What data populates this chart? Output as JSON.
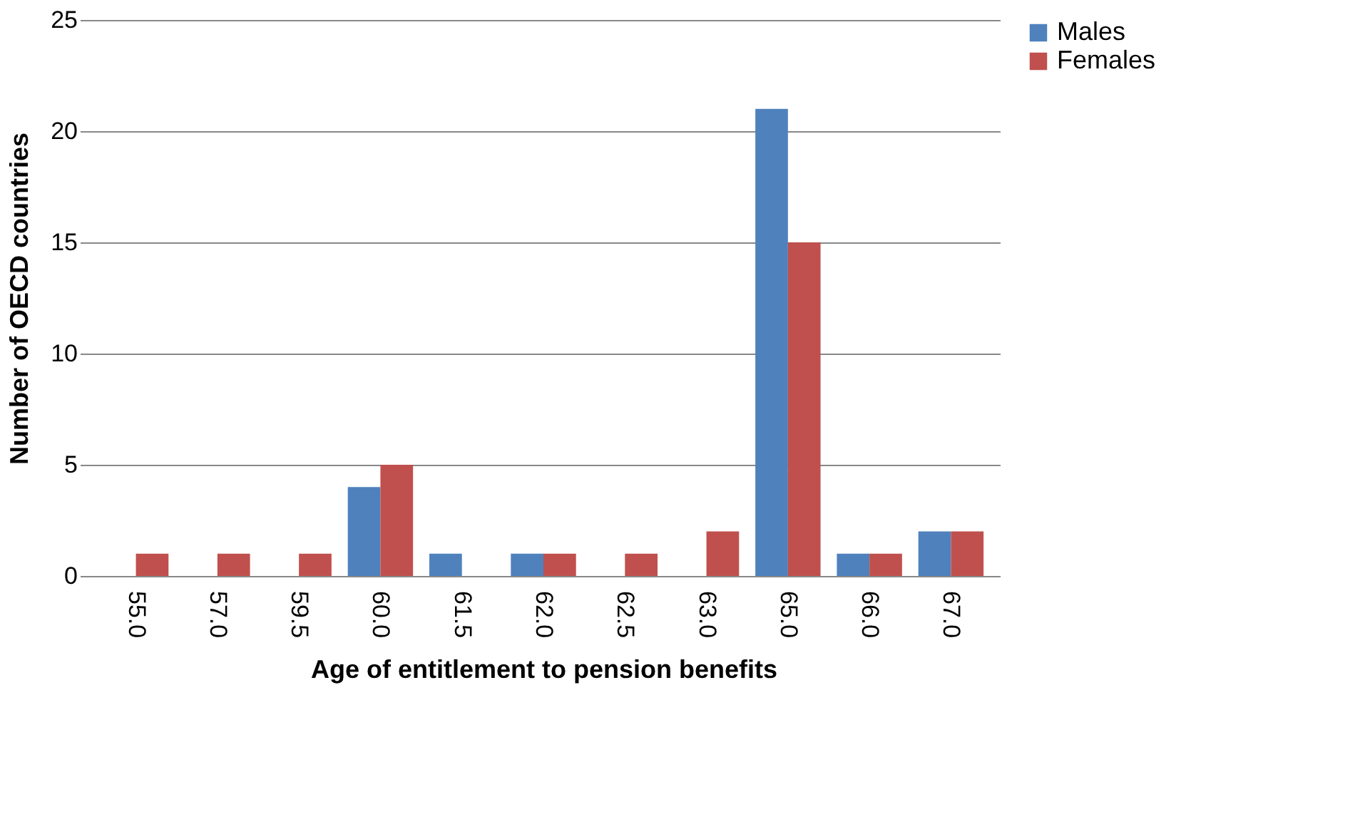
{
  "chart_data": {
    "type": "bar",
    "xlabel": "Age of entitlement to pension benefits",
    "ylabel": "Number of OECD countries",
    "categories": [
      "55.0",
      "57.0",
      "59.5",
      "60.0",
      "61.5",
      "62.0",
      "62.5",
      "63.0",
      "65.0",
      "66.0",
      "67.0"
    ],
    "series": [
      {
        "name": "Males",
        "color": "#4f81bd",
        "values": [
          0,
          0,
          0,
          4,
          1,
          1,
          0,
          0,
          21,
          1,
          2
        ]
      },
      {
        "name": "Females",
        "color": "#c0504d",
        "values": [
          1,
          1,
          1,
          5,
          0,
          1,
          1,
          2,
          15,
          1,
          2
        ]
      }
    ],
    "ylim": [
      0,
      25
    ],
    "yticks": [
      0,
      5,
      10,
      15,
      20,
      25
    ],
    "grid": "y",
    "legend": "right"
  }
}
